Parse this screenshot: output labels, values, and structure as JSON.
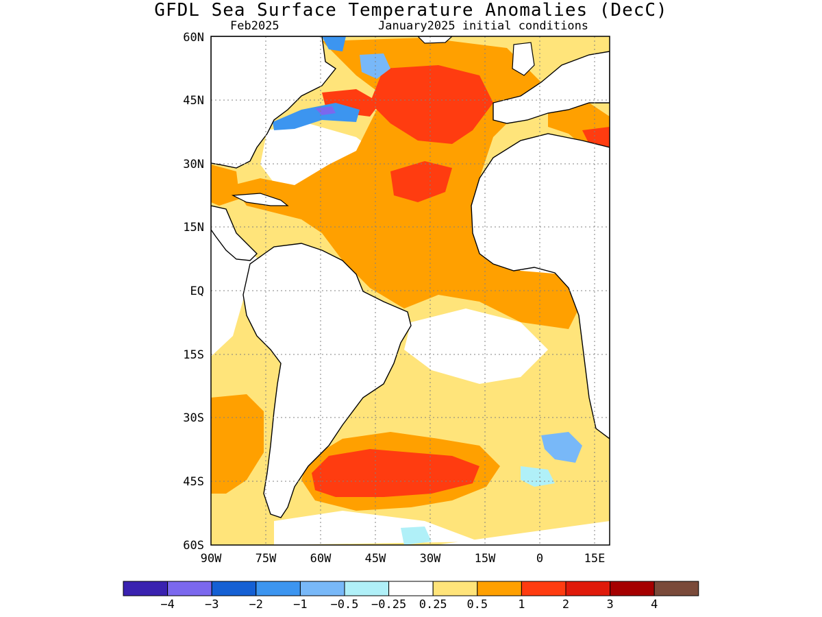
{
  "title": "GFDL Sea Surface Temperature Anomalies (DecC)",
  "subtitle_left": "Feb2025",
  "subtitle_right": "January2025 initial conditions",
  "lat_ticks": [
    "60N",
    "45N",
    "30N",
    "15N",
    "EQ",
    "15S",
    "30S",
    "45S",
    "60S"
  ],
  "lon_ticks": [
    "90W",
    "75W",
    "60W",
    "45W",
    "30W",
    "15W",
    "0",
    "15E"
  ],
  "colorbar": {
    "colors": [
      "#3a22b0",
      "#7b68ee",
      "#1560d4",
      "#3c95f0",
      "#78b8f8",
      "#b0f0f8",
      "#ffffff",
      "#ffe47a",
      "#ffa000",
      "#ff3c10",
      "#e01a0a",
      "#a50000",
      "#7a4a3a"
    ],
    "labels": [
      "−4",
      "−3",
      "−2",
      "−1",
      "−0.5",
      "−0.25",
      "0.25",
      "0.5",
      "1",
      "2",
      "3",
      "4"
    ]
  },
  "palette": {
    "pale_yellow": "#ffe47a",
    "orange": "#ffa000",
    "red_orange": "#ff3c10",
    "red": "#e01a0a",
    "light_cyan": "#b0f0f8",
    "light_blue": "#78b8f8",
    "blue": "#3c95f0",
    "dark_blue": "#1560d4",
    "purple": "#7b68ee",
    "land": "#ffffff",
    "coast": "#000000",
    "grid": "#808080"
  }
}
